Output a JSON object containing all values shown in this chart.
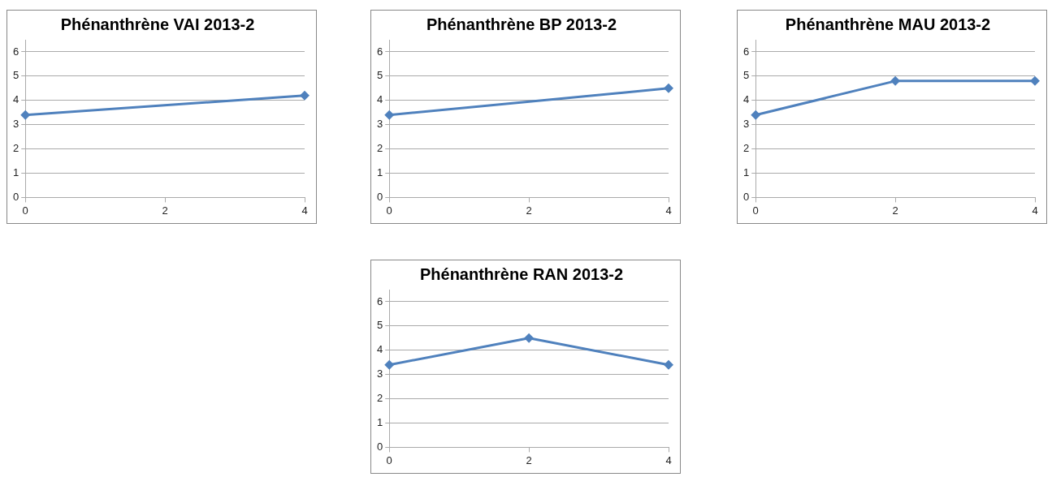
{
  "chart_data": [
    {
      "type": "line",
      "title": "Phénanthrène VAI 2013-2",
      "x": [
        0,
        4
      ],
      "series": [
        {
          "color": "#4f81bd",
          "values": [
            3.4,
            4.2
          ]
        }
      ],
      "xlim": [
        0,
        4
      ],
      "xticks": [
        0,
        2,
        4
      ],
      "ylim": [
        0,
        6.5
      ],
      "yticks": [
        0,
        1,
        2,
        3,
        4,
        5,
        6
      ],
      "grid": "y",
      "legend": false,
      "marker": "diamond",
      "line_style": "solid"
    },
    {
      "type": "line",
      "title": "Phénanthrène BP 2013-2",
      "x": [
        0,
        4
      ],
      "series": [
        {
          "color": "#4f81bd",
          "values": [
            3.4,
            4.5
          ]
        }
      ],
      "xlim": [
        0,
        4
      ],
      "xticks": [
        0,
        2,
        4
      ],
      "ylim": [
        0,
        6.5
      ],
      "yticks": [
        0,
        1,
        2,
        3,
        4,
        5,
        6
      ],
      "grid": "y",
      "legend": false,
      "marker": "diamond",
      "line_style": "solid"
    },
    {
      "type": "line",
      "title": "Phénanthrène MAU 2013-2",
      "x": [
        0,
        2,
        4
      ],
      "series": [
        {
          "color": "#4f81bd",
          "values": [
            3.4,
            4.8,
            4.8
          ]
        }
      ],
      "xlim": [
        0,
        4
      ],
      "xticks": [
        0,
        2,
        4
      ],
      "ylim": [
        0,
        6.5
      ],
      "yticks": [
        0,
        1,
        2,
        3,
        4,
        5,
        6
      ],
      "grid": "y",
      "legend": false,
      "marker": "diamond",
      "line_style": "solid"
    },
    {
      "type": "line",
      "title": "Phénanthrène RAN 2013-2",
      "x": [
        0,
        2,
        4
      ],
      "series": [
        {
          "color": "#4f81bd",
          "values": [
            3.4,
            4.5,
            3.4
          ]
        }
      ],
      "xlim": [
        0,
        4
      ],
      "xticks": [
        0,
        2,
        4
      ],
      "ylim": [
        0,
        6.5
      ],
      "yticks": [
        0,
        1,
        2,
        3,
        4,
        5,
        6
      ],
      "grid": "y",
      "legend": false,
      "marker": "diamond",
      "line_style": "solid"
    }
  ]
}
